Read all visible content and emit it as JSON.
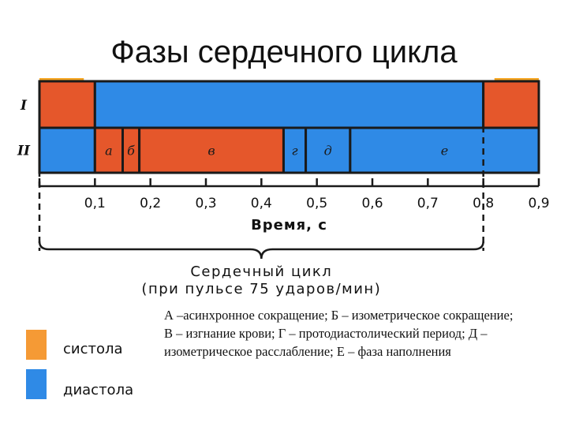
{
  "title": "Фазы сердечного цикла",
  "rows": [
    {
      "label": "I",
      "segments": [
        {
          "start": 0.0,
          "end": 0.1,
          "phase": "systole"
        },
        {
          "start": 0.1,
          "end": 0.8,
          "phase": "diastole"
        },
        {
          "start": 0.8,
          "end": 0.9,
          "phase": "systole"
        }
      ]
    },
    {
      "label": "II",
      "segments": [
        {
          "start": 0.0,
          "end": 0.1,
          "phase": "diastole",
          "letter": ""
        },
        {
          "start": 0.1,
          "end": 0.15,
          "phase": "systole",
          "letter": "а"
        },
        {
          "start": 0.15,
          "end": 0.18,
          "phase": "systole",
          "letter": "б"
        },
        {
          "start": 0.18,
          "end": 0.44,
          "phase": "systole",
          "letter": "в"
        },
        {
          "start": 0.44,
          "end": 0.48,
          "phase": "diastole",
          "letter": "г"
        },
        {
          "start": 0.48,
          "end": 0.56,
          "phase": "diastole",
          "letter": "д"
        },
        {
          "start": 0.56,
          "end": 0.9,
          "phase": "diastole",
          "letter": "е"
        }
      ]
    }
  ],
  "axis": {
    "min": 0.0,
    "max": 0.9,
    "ticks": [
      0.1,
      0.2,
      0.3,
      0.4,
      0.5,
      0.6,
      0.7,
      0.8,
      0.9
    ],
    "tick_labels": [
      "0,1",
      "0,2",
      "0,3",
      "0,4",
      "0,5",
      "0,6",
      "0,7",
      "0,8",
      "0,9"
    ],
    "label": "Время, с"
  },
  "cycle": {
    "start": 0.0,
    "end": 0.8,
    "label_line1": "Сердечный цикл",
    "label_line2": "(при пульсе 75 ударов/мин)"
  },
  "legend": [
    {
      "name": "систола",
      "color": "#f59a35"
    },
    {
      "name": "диастола",
      "color": "#2f8ae6"
    }
  ],
  "description": "А –асинхронное сокращение; Б – изометрическое сокращение; В – изгнание крови; Г – протодиастолический период; Д – изометрическое расслабление; Е – фаза наполнения",
  "colors": {
    "systole": "#e5572b",
    "diastole": "#2f8ae6",
    "border": "#1a1a1a",
    "highlight": "#f5a623"
  }
}
